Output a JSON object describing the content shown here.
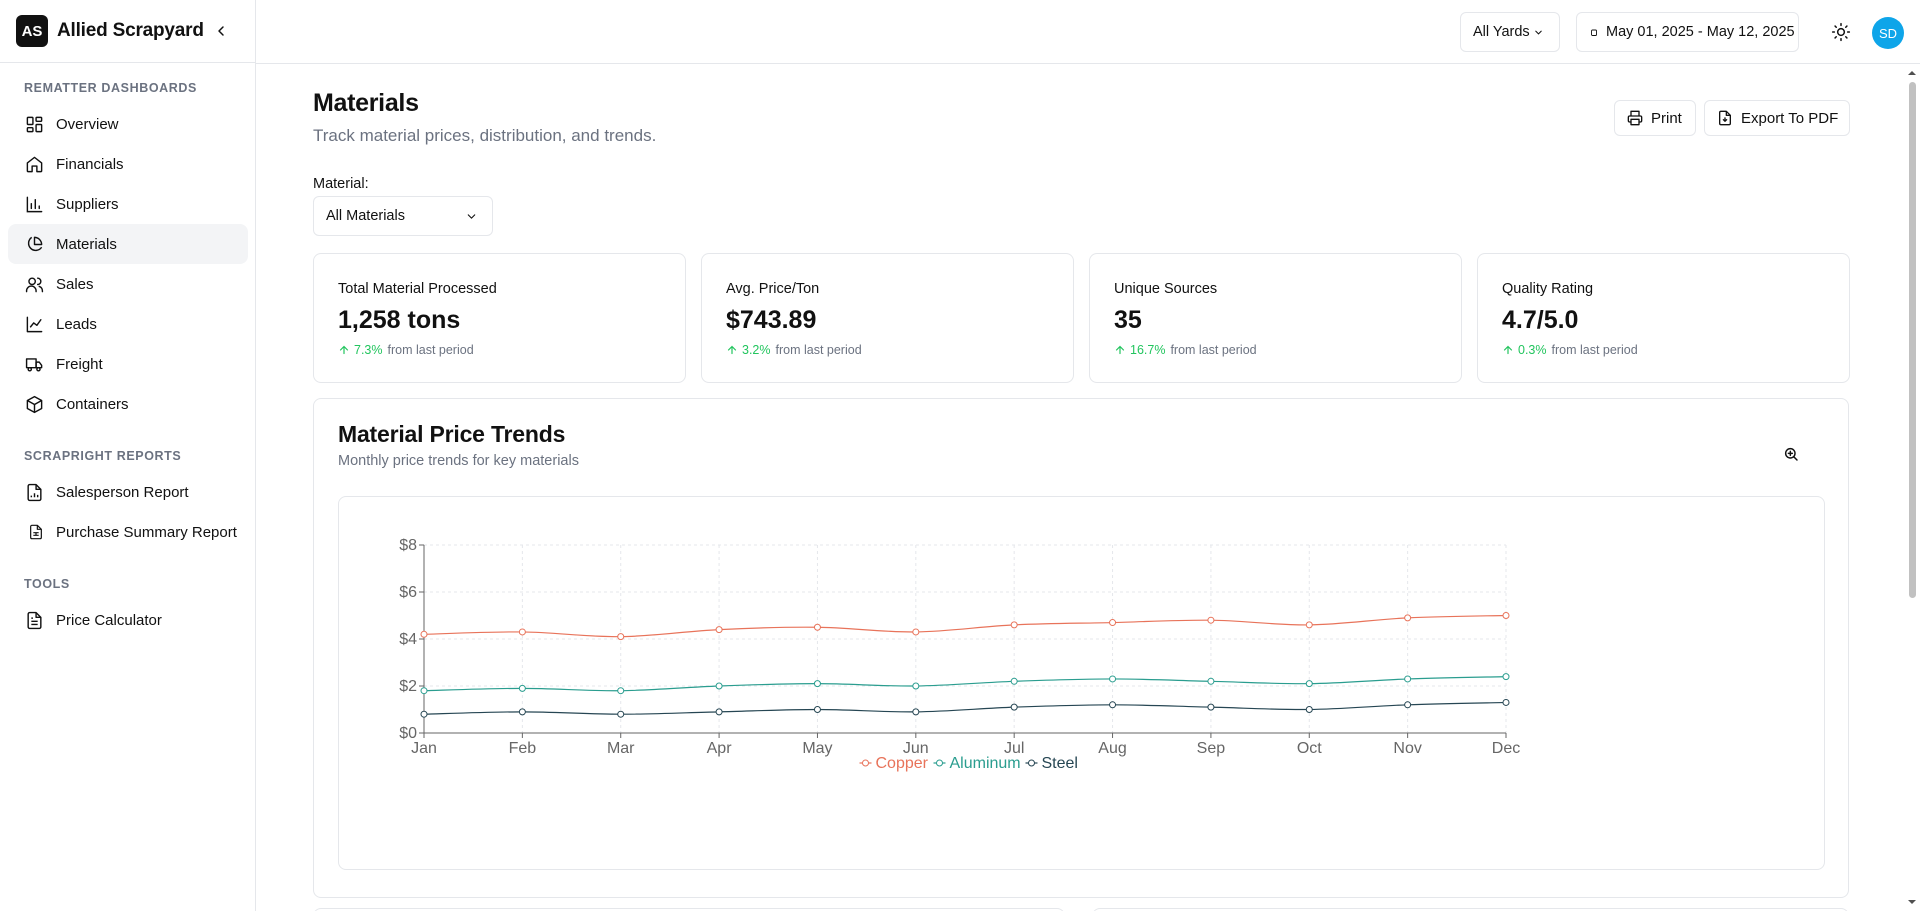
{
  "brand": {
    "logo_text": "AS",
    "name": "Allied Scrapyard"
  },
  "sidebar": {
    "sections": [
      {
        "title": "REMATTER DASHBOARDS",
        "items": [
          {
            "label": "Overview",
            "icon": "layout-grid-icon",
            "active": false
          },
          {
            "label": "Financials",
            "icon": "home-icon",
            "active": false
          },
          {
            "label": "Suppliers",
            "icon": "bar-chart-icon",
            "active": false
          },
          {
            "label": "Materials",
            "icon": "pie-chart-icon",
            "active": true
          },
          {
            "label": "Sales",
            "icon": "users-icon",
            "active": false
          },
          {
            "label": "Leads",
            "icon": "line-chart-icon",
            "active": false
          },
          {
            "label": "Freight",
            "icon": "truck-icon",
            "active": false
          },
          {
            "label": "Containers",
            "icon": "box-icon",
            "active": false
          }
        ]
      },
      {
        "title": "SCRAPRIGHT REPORTS",
        "items": [
          {
            "label": "Salesperson Report",
            "icon": "file-chart-icon",
            "active": false
          },
          {
            "label": "Purchase Summary Report",
            "icon": "file-spreadsheet-icon",
            "active": false
          }
        ]
      },
      {
        "title": "TOOLS",
        "items": [
          {
            "label": "Price Calculator",
            "icon": "file-text-icon",
            "active": false
          }
        ]
      }
    ]
  },
  "topbar": {
    "yard_select": "All Yards",
    "date_range": "May 01, 2025 - May 12, 2025",
    "avatar_initials": "SD",
    "avatar_color": "#0ea5e9"
  },
  "page": {
    "title": "Materials",
    "subtitle": "Track material prices, distribution, and trends.",
    "print_label": "Print",
    "export_label": "Export To PDF",
    "material_label": "Material:",
    "material_value": "All Materials"
  },
  "kpis": [
    {
      "label": "Total Material Processed",
      "value": "1,258 tons",
      "delta": "7.3%",
      "delta_suffix": "from last period"
    },
    {
      "label": "Avg. Price/Ton",
      "value": "$743.89",
      "delta": "3.2%",
      "delta_suffix": "from last period"
    },
    {
      "label": "Unique Sources",
      "value": "35",
      "delta": "16.7%",
      "delta_suffix": "from last period"
    },
    {
      "label": "Quality Rating",
      "value": "4.7/5.0",
      "delta": "0.3%",
      "delta_suffix": "from last period"
    }
  ],
  "chart": {
    "title": "Material Price Trends",
    "subtitle": "Monthly price trends for key materials"
  },
  "chart_data": {
    "type": "line",
    "x": [
      "Jan",
      "Feb",
      "Mar",
      "Apr",
      "May",
      "Jun",
      "Jul",
      "Aug",
      "Sep",
      "Oct",
      "Nov",
      "Dec"
    ],
    "yticks": [
      "$0",
      "$2",
      "$4",
      "$6",
      "$8"
    ],
    "ylim": [
      0,
      8
    ],
    "grid": true,
    "legend": "bottom-center",
    "series": [
      {
        "name": "Copper",
        "color": "#e8735a",
        "values": [
          4.2,
          4.3,
          4.1,
          4.4,
          4.5,
          4.3,
          4.6,
          4.7,
          4.8,
          4.6,
          4.9,
          5.0
        ]
      },
      {
        "name": "Aluminum",
        "color": "#2a9d8f",
        "values": [
          1.8,
          1.9,
          1.8,
          2.0,
          2.1,
          2.0,
          2.2,
          2.3,
          2.2,
          2.1,
          2.3,
          2.4
        ]
      },
      {
        "name": "Steel",
        "color": "#264653",
        "values": [
          0.8,
          0.9,
          0.8,
          0.9,
          1.0,
          0.9,
          1.1,
          1.2,
          1.1,
          1.0,
          1.2,
          1.3
        ]
      }
    ]
  }
}
